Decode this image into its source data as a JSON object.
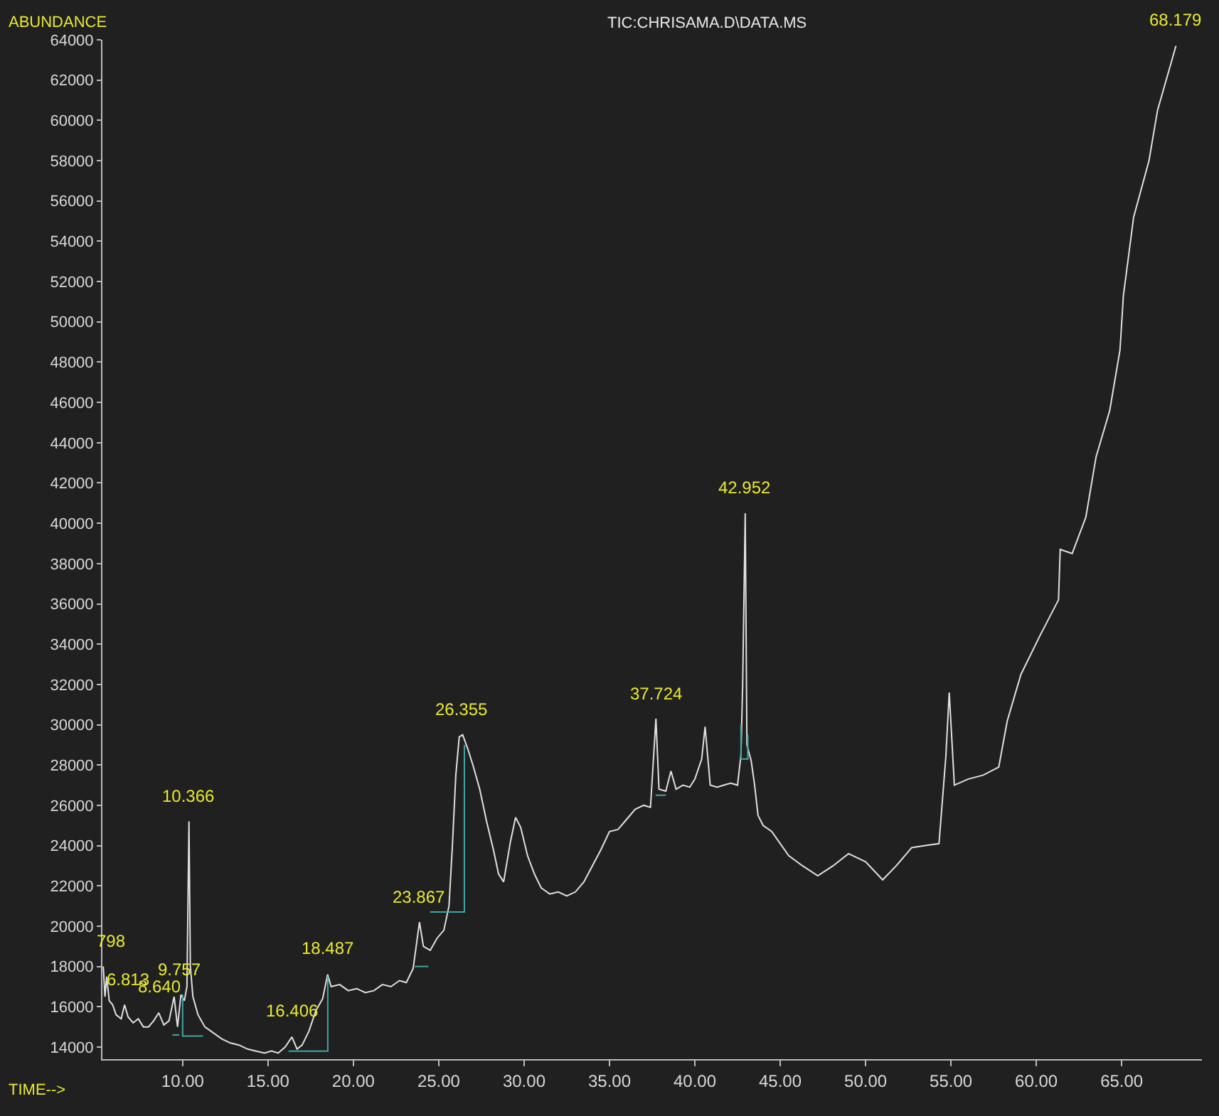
{
  "chart_data": {
    "type": "line",
    "title": "TIC:CHRISAMA.D\\DATA.MS",
    "xlabel": "TIME-->",
    "ylabel": "ABUNDANCE",
    "xlim": [
      5.3,
      69.7
    ],
    "ylim": [
      13400,
      64000
    ],
    "xticks": [
      {
        "value": 10,
        "label": "10.00"
      },
      {
        "value": 15,
        "label": "15.00"
      },
      {
        "value": 20,
        "label": "20.00"
      },
      {
        "value": 25,
        "label": "25.00"
      },
      {
        "value": 30,
        "label": "30.00"
      },
      {
        "value": 35,
        "label": "35.00"
      },
      {
        "value": 40,
        "label": "40.00"
      },
      {
        "value": 45,
        "label": "45.00"
      },
      {
        "value": 50,
        "label": "50.00"
      },
      {
        "value": 55,
        "label": "55.00"
      },
      {
        "value": 60,
        "label": "60.00"
      },
      {
        "value": 65,
        "label": "65.00"
      }
    ],
    "yticks": [
      14000,
      16000,
      18000,
      20000,
      22000,
      24000,
      26000,
      28000,
      30000,
      32000,
      34000,
      36000,
      38000,
      40000,
      42000,
      44000,
      46000,
      48000,
      50000,
      52000,
      54000,
      56000,
      58000,
      60000,
      62000,
      64000
    ],
    "grid": false,
    "annotations": [
      {
        "text": "798",
        "x": 5.798,
        "y": 18000
      },
      {
        "text": "6.813",
        "x": 6.813,
        "y": 16100
      },
      {
        "text": "8.640",
        "x": 8.64,
        "y": 15700
      },
      {
        "text": "9.757",
        "x": 9.757,
        "y": 16600
      },
      {
        "text": "10.366",
        "x": 10.366,
        "y": 25200
      },
      {
        "text": "16.406",
        "x": 16.406,
        "y": 14500
      },
      {
        "text": "18.487",
        "x": 18.487,
        "y": 17600
      },
      {
        "text": "23.867",
        "x": 23.867,
        "y": 20200
      },
      {
        "text": "26.355",
        "x": 26.355,
        "y": 29500
      },
      {
        "text": "37.724",
        "x": 37.724,
        "y": 30300
      },
      {
        "text": "42.952",
        "x": 42.952,
        "y": 40500
      },
      {
        "text": "68.179",
        "x": 68.179,
        "y": 63700
      }
    ],
    "series": [
      {
        "color": "#e0e0e0",
        "x": [
          5.35,
          5.45,
          5.55,
          5.7,
          5.9,
          6.1,
          6.4,
          6.6,
          6.8,
          7.1,
          7.4,
          7.7,
          8.0,
          8.3,
          8.6,
          8.9,
          9.2,
          9.5,
          9.7,
          9.9,
          10.1,
          10.25,
          10.37,
          10.45,
          10.6,
          10.9,
          11.3,
          11.8,
          12.3,
          12.8,
          13.3,
          13.8,
          14.3,
          14.8,
          15.2,
          15.6,
          16.0,
          16.4,
          16.7,
          17.0,
          17.4,
          17.8,
          18.2,
          18.49,
          18.7,
          19.2,
          19.7,
          20.2,
          20.7,
          21.2,
          21.7,
          22.2,
          22.7,
          23.1,
          23.5,
          23.87,
          24.1,
          24.5,
          24.9,
          25.3,
          25.6,
          25.8,
          26.0,
          26.2,
          26.4,
          26.7,
          27.0,
          27.4,
          27.8,
          28.2,
          28.5,
          28.8,
          29.2,
          29.5,
          29.8,
          30.2,
          30.6,
          31.0,
          31.5,
          32.0,
          32.5,
          33.0,
          33.5,
          34.0,
          34.5,
          35.0,
          35.5,
          36.0,
          36.5,
          37.0,
          37.4,
          37.72,
          37.9,
          38.3,
          38.6,
          38.9,
          39.3,
          39.7,
          40.0,
          40.4,
          40.6,
          40.9,
          41.3,
          41.7,
          42.1,
          42.5,
          42.7,
          42.8,
          42.95,
          43.05,
          43.3,
          43.5,
          43.7,
          44.0,
          44.5,
          45.5,
          46.3,
          47.2,
          48.1,
          49.0,
          50.0,
          51.0,
          51.8,
          52.7,
          53.5,
          54.3,
          54.7,
          54.9,
          55.2,
          56.0,
          56.9,
          57.8,
          58.3,
          59.1,
          60.2,
          61.3,
          61.4,
          62.1,
          62.9,
          63.5,
          64.3,
          64.9,
          65.1,
          65.7,
          66.6,
          67.1,
          68.179
        ],
        "values": [
          18000,
          16500,
          17500,
          16300,
          16100,
          15600,
          15400,
          16100,
          15500,
          15200,
          15400,
          15000,
          15000,
          15300,
          15700,
          15100,
          15300,
          16500,
          15000,
          16600,
          16300,
          17000,
          25200,
          18000,
          16500,
          15600,
          15000,
          14700,
          14400,
          14200,
          14100,
          13900,
          13800,
          13700,
          13800,
          13700,
          14000,
          14500,
          13900,
          14100,
          14800,
          15800,
          16400,
          17600,
          17000,
          17100,
          16800,
          16900,
          16700,
          16800,
          17100,
          17000,
          17300,
          17200,
          17900,
          20200,
          19000,
          18800,
          19400,
          19800,
          21000,
          24000,
          27500,
          29400,
          29500,
          28800,
          28000,
          26800,
          25200,
          23800,
          22600,
          22200,
          24200,
          25400,
          24900,
          23500,
          22600,
          21900,
          21600,
          21700,
          21500,
          21700,
          22200,
          23000,
          23800,
          24700,
          24800,
          25300,
          25800,
          26000,
          25900,
          30300,
          26800,
          26700,
          27700,
          26800,
          27000,
          26900,
          27300,
          28300,
          29900,
          27000,
          26900,
          27000,
          27100,
          27000,
          28500,
          32000,
          40500,
          29000,
          28200,
          27000,
          25500,
          25000,
          24700,
          23500,
          23000,
          22500,
          23000,
          23600,
          23200,
          22300,
          23000,
          23900,
          24000,
          24100,
          28400,
          31600,
          27000,
          27300,
          27500,
          27900,
          30200,
          32500,
          34400,
          36200,
          38700,
          38500,
          40300,
          43300,
          45600,
          48600,
          51300,
          55200,
          58000,
          60500,
          63700
        ]
      },
      {
        "color": "#3fa7a7",
        "x": [
          9.4,
          9.8,
          null,
          10.0,
          10.0,
          11.2,
          null,
          16.2,
          18.5,
          18.5,
          null,
          23.6,
          24.4,
          null,
          24.5,
          26.5,
          26.5,
          null,
          37.7,
          38.3,
          null,
          42.7,
          42.7,
          43.1,
          43.1
        ],
        "values": [
          14600,
          14600,
          null,
          16600,
          14550,
          14550,
          null,
          13800,
          13800,
          17500,
          null,
          18000,
          18000,
          null,
          20700,
          20700,
          29000,
          null,
          26500,
          26500,
          null,
          30000,
          28300,
          28300,
          29500
        ]
      }
    ]
  }
}
